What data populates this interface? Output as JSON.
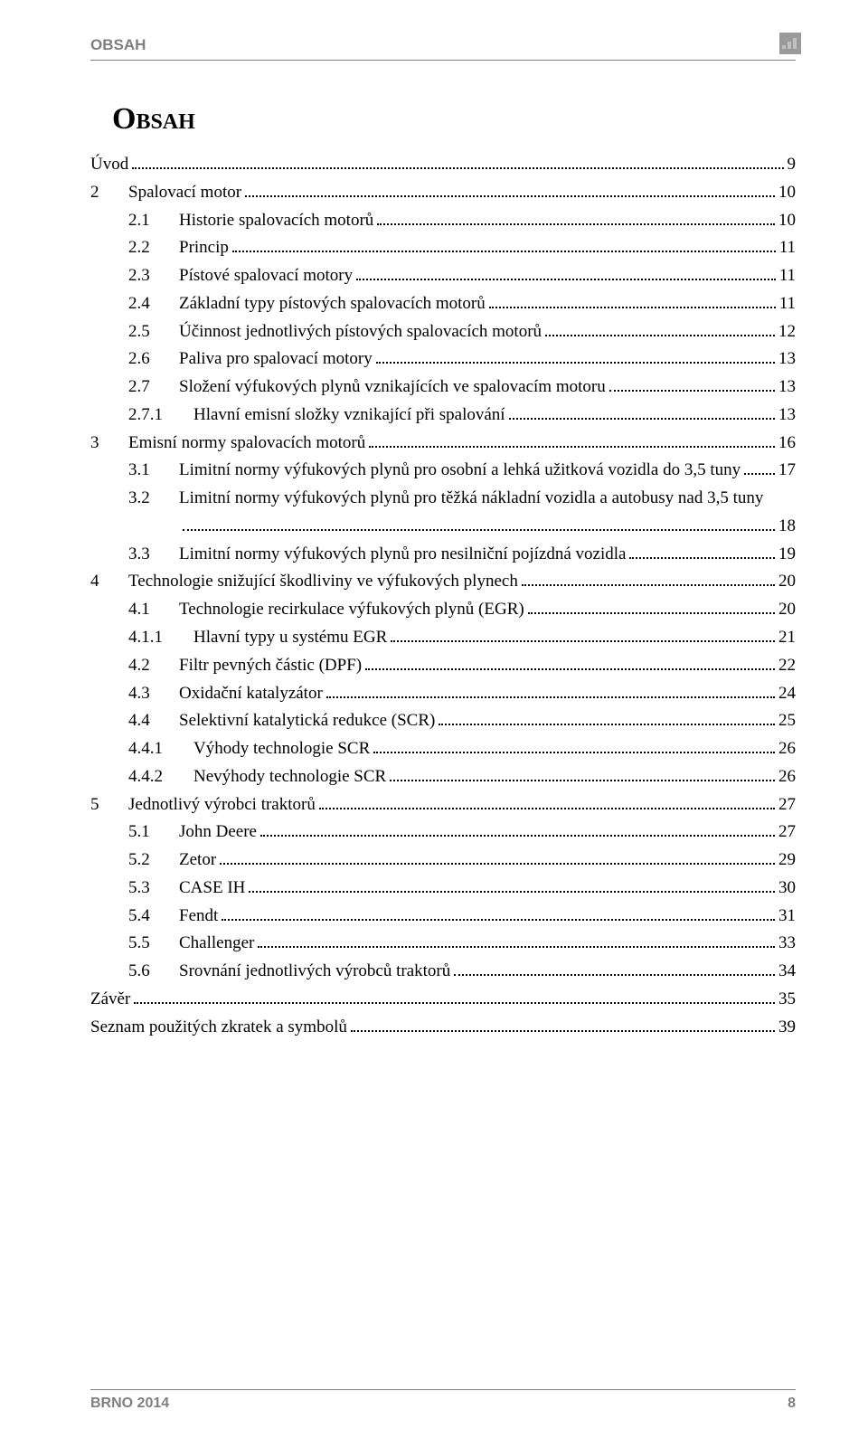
{
  "running_head": "OBSAH",
  "title": "Obsah",
  "footer_left": "BRNO 2014",
  "footer_page": "8",
  "colors": {
    "text": "#000000",
    "muted": "#7f7f7f",
    "background": "#ffffff"
  },
  "typography": {
    "body_family": "Times New Roman",
    "header_family": "Arial",
    "body_size_pt": 14,
    "title_size_pt": 26,
    "header_size_pt": 13
  },
  "toc": [
    {
      "level": 0,
      "label": "",
      "text": "Úvod",
      "page": "9"
    },
    {
      "level": 1,
      "label": "2",
      "text": "Spalovací motor",
      "page": "10"
    },
    {
      "level": 2,
      "label": "2.1",
      "text": "Historie spalovacích motorů",
      "page": "10"
    },
    {
      "level": 2,
      "label": "2.2",
      "text": "Princip",
      "page": "11"
    },
    {
      "level": 2,
      "label": "2.3",
      "text": "Pístové spalovací motory",
      "page": "11"
    },
    {
      "level": 2,
      "label": "2.4",
      "text": "Základní typy pístových spalovacích motorů",
      "page": "11"
    },
    {
      "level": 2,
      "label": "2.5",
      "text": "Účinnost jednotlivých pístových spalovacích motorů",
      "page": "12"
    },
    {
      "level": 2,
      "label": "2.6",
      "text": "Paliva pro spalovací motory",
      "page": "13"
    },
    {
      "level": 2,
      "label": "2.7",
      "text": "Složení výfukových plynů vznikajících ve spalovacím motoru",
      "page": "13"
    },
    {
      "level": 3,
      "label": "2.7.1",
      "text": "Hlavní emisní složky vznikající při spalování",
      "page": "13"
    },
    {
      "level": 1,
      "label": "3",
      "text": "Emisní normy spalovacích motorů",
      "page": "16"
    },
    {
      "level": 2,
      "label": "3.1",
      "text": "Limitní normy výfukových plynů pro osobní a lehká užitková vozidla do 3,5 tuny",
      "page": "17",
      "wrap_tail": ""
    },
    {
      "level": 2,
      "label": "3.2",
      "text": "Limitní normy výfukových plynů pro těžká nákladní vozidla a autobusy nad 3,5 tuny",
      "text2": "",
      "page": "18",
      "wraps": true
    },
    {
      "level": 2,
      "label": "3.3",
      "text": "Limitní normy výfukových plynů pro nesilniční pojízdná vozidla",
      "page": "19"
    },
    {
      "level": 1,
      "label": "4",
      "text": "Technologie snižující škodliviny ve výfukových plynech",
      "page": "20"
    },
    {
      "level": 2,
      "label": "4.1",
      "text": "Technologie recirkulace výfukových plynů (EGR)",
      "page": "20"
    },
    {
      "level": 3,
      "label": "4.1.1",
      "text": "Hlavní typy u systému EGR",
      "page": "21"
    },
    {
      "level": 2,
      "label": "4.2",
      "text": "Filtr pevných částic (DPF)",
      "page": "22"
    },
    {
      "level": 2,
      "label": "4.3",
      "text": "Oxidační katalyzátor",
      "page": "24"
    },
    {
      "level": 2,
      "label": "4.4",
      "text": "Selektivní katalytická redukce (SCR)",
      "page": "25"
    },
    {
      "level": 3,
      "label": "4.4.1",
      "text": "Výhody technologie SCR",
      "page": "26"
    },
    {
      "level": 3,
      "label": "4.4.2",
      "text": "Nevýhody technologie SCR",
      "page": "26"
    },
    {
      "level": 1,
      "label": "5",
      "text": "Jednotlivý výrobci traktorů",
      "page": "27"
    },
    {
      "level": 2,
      "label": "5.1",
      "text": "John Deere",
      "page": "27"
    },
    {
      "level": 2,
      "label": "5.2",
      "text": "Zetor ",
      "page": "29"
    },
    {
      "level": 2,
      "label": "5.3",
      "text": "CASE IH",
      "page": "30"
    },
    {
      "level": 2,
      "label": "5.4",
      "text": "Fendt ",
      "page": "31"
    },
    {
      "level": 2,
      "label": "5.5",
      "text": "Challenger",
      "page": "33"
    },
    {
      "level": 2,
      "label": "5.6",
      "text": "Srovnání jednotlivých výrobců traktorů",
      "page": "34"
    },
    {
      "level": 0,
      "label": "",
      "text": "Závěr",
      "page": "35"
    },
    {
      "level": 0,
      "label": "",
      "text": "Seznam použitých zkratek a symbolů",
      "page": "39"
    }
  ]
}
